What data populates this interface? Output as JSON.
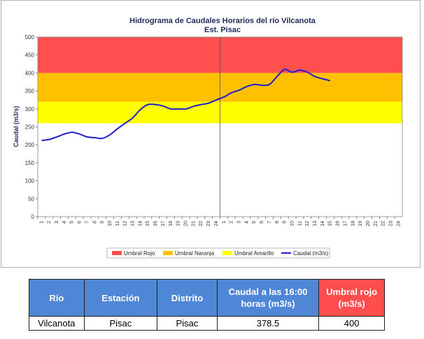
{
  "chart_data": {
    "type": "line",
    "title": "Hidrograma de Caudales Horarios del río Vilcanota",
    "subtitle": "Est. Pisac",
    "ylabel": "Caudal  (m3/s)",
    "xlabel": "",
    "ylim": [
      0,
      500
    ],
    "yticks": [
      0,
      50,
      100,
      150,
      200,
      250,
      300,
      350,
      400,
      450,
      500
    ],
    "grid": false,
    "legend_position": "bottom",
    "x_tick_labels": [
      "1",
      "2",
      "3",
      "4",
      "5",
      "6",
      "7",
      "8",
      "9",
      "10",
      "11",
      "12",
      "13",
      "14",
      "15",
      "16",
      "17",
      "18",
      "19",
      "20",
      "21",
      "22",
      "23",
      "24",
      "1",
      "2",
      "3",
      "4",
      "5",
      "6",
      "7",
      "8",
      "9",
      "10",
      "11",
      "12",
      "13",
      "14",
      "15",
      "16",
      "17",
      "18",
      "19",
      "20",
      "21",
      "22",
      "23",
      "24"
    ],
    "bands": [
      {
        "name": "Umbral Rojo",
        "from": 400,
        "to": 500,
        "color": "#ff4f4f"
      },
      {
        "name": "Umbral Naranja",
        "from": 320,
        "to": 400,
        "color": "#ffc000"
      },
      {
        "name": "Umbral Amarillo",
        "from": 260,
        "to": 320,
        "color": "#ffff00"
      }
    ],
    "series": [
      {
        "name": "Caudal (m3/s)",
        "color": "#1f1fcc",
        "values": [
          212,
          215,
          222,
          230,
          235,
          230,
          222,
          220,
          218,
          228,
          245,
          260,
          275,
          298,
          312,
          312,
          308,
          300,
          300,
          300,
          307,
          312,
          316,
          325,
          333,
          345,
          352,
          362,
          368,
          366,
          368,
          390,
          410,
          402,
          408,
          402,
          390,
          384,
          378.5
        ]
      }
    ],
    "legend": [
      "Umbral Rojo",
      "Umbral Naranja",
      "Umbral Amarillo",
      "Caudal (m3/s)"
    ]
  },
  "table": {
    "headers": [
      "Río",
      "Estación",
      "Distrito",
      "Caudal a las 16:00 horas (m3/s)",
      "Umbral rojo (m3/s)"
    ],
    "row": [
      "Vilcanota",
      "Pisac",
      "Pisac",
      "378.5",
      "400"
    ]
  }
}
